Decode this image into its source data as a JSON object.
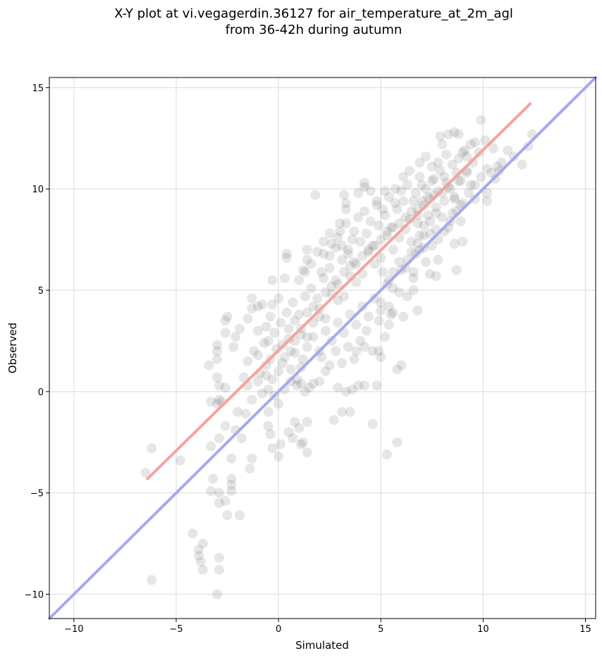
{
  "chart_data": {
    "type": "scatter",
    "title_line1": "X-Y plot at vi.vegagerdin.36127 for air_temperature_at_2m_agl",
    "title_line2": "from 36-42h during autumn",
    "xlabel": "Simulated",
    "ylabel": "Observed",
    "xlim": [
      -11.2,
      15.5
    ],
    "ylim": [
      -11.2,
      15.5
    ],
    "xticks": [
      -10,
      -5,
      0,
      5,
      10,
      15
    ],
    "yticks": [
      -10,
      -5,
      0,
      5,
      10,
      15
    ],
    "xtick_labels": [
      "−10",
      "−5",
      "0",
      "5",
      "10",
      "15"
    ],
    "ytick_labels": [
      "−10",
      "−5",
      "0",
      "5",
      "10",
      "15"
    ],
    "grid": true,
    "point_color": "#555555",
    "fit_line": {
      "color": "#f4a3a3",
      "x": [
        -6.4,
        12.3
      ],
      "y": [
        -4.3,
        14.2
      ]
    },
    "identity_line": {
      "color": "#a8a8f0",
      "x": [
        -11.2,
        15.5
      ],
      "y": [
        -11.2,
        15.5
      ]
    },
    "points": [
      [
        -6.2,
        -9.3
      ],
      [
        -3.0,
        -10.0
      ],
      [
        -2.9,
        -8.8
      ],
      [
        -2.9,
        -8.2
      ],
      [
        -3.9,
        -8.1
      ],
      [
        -3.8,
        -8.4
      ],
      [
        -3.7,
        -8.8
      ],
      [
        -4.2,
        -7.0
      ],
      [
        -3.7,
        -7.5
      ],
      [
        -3.9,
        -7.8
      ],
      [
        -6.5,
        -4.0
      ],
      [
        -6.2,
        -2.8
      ],
      [
        -4.8,
        -3.4
      ],
      [
        -3.2,
        -4.3
      ],
      [
        -3.3,
        -4.9
      ],
      [
        -2.9,
        -5.0
      ],
      [
        -2.9,
        -5.5
      ],
      [
        -2.6,
        -5.4
      ],
      [
        -2.5,
        -6.1
      ],
      [
        -1.9,
        -6.1
      ],
      [
        -2.3,
        -4.3
      ],
      [
        -2.3,
        -4.6
      ],
      [
        -2.3,
        -4.9
      ],
      [
        -1.4,
        -3.8
      ],
      [
        -1.3,
        -3.3
      ],
      [
        -2.3,
        -3.3
      ],
      [
        -3.3,
        -2.7
      ],
      [
        -2.9,
        -2.3
      ],
      [
        -2.1,
        -1.9
      ],
      [
        -2.6,
        -1.7
      ],
      [
        -3.0,
        -0.6
      ],
      [
        -2.9,
        -0.4
      ],
      [
        -2.6,
        0.2
      ],
      [
        -3.0,
        0.7
      ],
      [
        -3.3,
        -0.5
      ],
      [
        -2.9,
        0.3
      ],
      [
        -2.8,
        -0.5
      ],
      [
        -2.0,
        -1.0
      ],
      [
        -1.6,
        -1.1
      ],
      [
        -1.8,
        -2.3
      ],
      [
        -3.0,
        1.6
      ],
      [
        -3.0,
        2.0
      ],
      [
        -3.0,
        2.3
      ],
      [
        -3.4,
        1.3
      ],
      [
        -2.6,
        2.9
      ],
      [
        -2.6,
        3.5
      ],
      [
        -2.5,
        3.7
      ],
      [
        -2.2,
        2.2
      ],
      [
        -2.1,
        2.7
      ],
      [
        -1.9,
        3.1
      ],
      [
        -1.5,
        3.6
      ],
      [
        -1.3,
        4.6
      ],
      [
        -1.3,
        4.1
      ],
      [
        -1.0,
        3.0
      ],
      [
        -1.0,
        4.2
      ],
      [
        -0.8,
        4.3
      ],
      [
        -0.6,
        3.2
      ],
      [
        -0.4,
        3.7
      ],
      [
        -0.3,
        4.3
      ],
      [
        0.0,
        4.6
      ],
      [
        -1.7,
        0.7
      ],
      [
        -1.5,
        0.3
      ],
      [
        -1.3,
        -0.4
      ],
      [
        -1.0,
        0.5
      ],
      [
        -0.8,
        -0.1
      ],
      [
        -0.6,
        0.8
      ],
      [
        -0.5,
        -1.0
      ],
      [
        -0.4,
        -2.1
      ],
      [
        -0.3,
        -2.8
      ],
      [
        -0.5,
        -1.7
      ],
      [
        0.0,
        -3.2
      ],
      [
        0.1,
        -2.6
      ],
      [
        0.5,
        -2.0
      ],
      [
        0.7,
        -2.3
      ],
      [
        1.0,
        -1.8
      ],
      [
        1.1,
        -2.6
      ],
      [
        1.2,
        -2.5
      ],
      [
        0.8,
        -1.5
      ],
      [
        1.4,
        -1.5
      ],
      [
        1.4,
        -3.0
      ],
      [
        0.3,
        5.6
      ],
      [
        0.4,
        6.6
      ],
      [
        0.4,
        6.8
      ],
      [
        -0.3,
        5.5
      ],
      [
        1.2,
        6.0
      ],
      [
        1.4,
        6.5
      ],
      [
        1.4,
        7.0
      ],
      [
        1.8,
        9.7
      ],
      [
        2.1,
        5.9
      ],
      [
        2.2,
        6.8
      ],
      [
        2.5,
        6.7
      ],
      [
        2.6,
        7.3
      ],
      [
        2.9,
        7.6
      ],
      [
        3.0,
        8.3
      ],
      [
        3.3,
        9.0
      ],
      [
        3.2,
        9.7
      ],
      [
        3.3,
        9.3
      ],
      [
        3.9,
        9.8
      ],
      [
        4.2,
        10.3
      ],
      [
        4.2,
        10.1
      ],
      [
        4.5,
        9.9
      ],
      [
        4.8,
        9.4
      ],
      [
        5.2,
        9.9
      ],
      [
        5.7,
        10.0
      ],
      [
        6.1,
        10.6
      ],
      [
        6.4,
        10.9
      ],
      [
        6.9,
        11.3
      ],
      [
        7.2,
        11.6
      ],
      [
        7.5,
        11.1
      ],
      [
        7.9,
        12.6
      ],
      [
        8.3,
        12.7
      ],
      [
        8.6,
        12.8
      ],
      [
        8.8,
        12.7
      ],
      [
        9.1,
        11.9
      ],
      [
        9.2,
        11.6
      ],
      [
        9.6,
        12.3
      ],
      [
        9.8,
        11.8
      ],
      [
        9.9,
        13.4
      ],
      [
        10.1,
        12.4
      ],
      [
        10.5,
        12.0
      ],
      [
        10.6,
        10.5
      ],
      [
        10.8,
        10.9
      ],
      [
        10.2,
        9.4
      ],
      [
        8.9,
        9.2
      ],
      [
        8.5,
        8.8
      ],
      [
        8.9,
        8.4
      ],
      [
        8.6,
        7.3
      ],
      [
        9.0,
        7.4
      ],
      [
        8.7,
        6.0
      ],
      [
        7.8,
        6.5
      ],
      [
        7.7,
        5.7
      ],
      [
        7.4,
        5.8
      ],
      [
        7.1,
        7.1
      ],
      [
        6.9,
        7.7
      ],
      [
        6.7,
        6.8
      ],
      [
        6.6,
        5.6
      ],
      [
        6.8,
        4.0
      ],
      [
        6.6,
        5.0
      ],
      [
        6.3,
        4.7
      ],
      [
        6.1,
        3.7
      ],
      [
        5.9,
        4.9
      ],
      [
        5.6,
        3.9
      ],
      [
        5.4,
        3.3
      ],
      [
        5.4,
        4.2
      ],
      [
        5.6,
        5.1
      ],
      [
        5.4,
        5.5
      ],
      [
        5.1,
        5.9
      ],
      [
        5.0,
        4.0
      ],
      [
        4.9,
        2.0
      ],
      [
        5.0,
        1.7
      ],
      [
        4.8,
        0.3
      ],
      [
        4.6,
        -1.6
      ],
      [
        5.8,
        -2.5
      ],
      [
        5.3,
        -3.1
      ],
      [
        5.8,
        1.1
      ],
      [
        6.0,
        1.3
      ],
      [
        4.2,
        2.2
      ],
      [
        3.8,
        2.0
      ],
      [
        3.6,
        0.1
      ],
      [
        3.5,
        -1.0
      ],
      [
        3.1,
        -1.0
      ],
      [
        2.7,
        -1.4
      ],
      [
        2.9,
        0.2
      ],
      [
        3.3,
        0.0
      ],
      [
        3.9,
        0.3
      ],
      [
        4.2,
        0.3
      ],
      [
        2.5,
        1.3
      ],
      [
        2.3,
        1.0
      ],
      [
        2.1,
        1.7
      ],
      [
        2.0,
        0.5
      ],
      [
        1.7,
        0.4
      ],
      [
        1.5,
        0.2
      ],
      [
        1.3,
        0.0
      ],
      [
        1.1,
        0.4
      ],
      [
        0.9,
        0.6
      ],
      [
        0.6,
        0.5
      ],
      [
        0.3,
        0.1
      ],
      [
        0.0,
        -0.6
      ],
      [
        -0.2,
        -0.2
      ],
      [
        -0.5,
        0.1
      ],
      [
        12.2,
        12.1
      ],
      [
        12.4,
        12.7
      ],
      [
        11.9,
        11.2
      ],
      [
        11.5,
        11.6
      ],
      [
        11.2,
        11.9
      ],
      [
        10.9,
        11.3
      ],
      [
        10.7,
        11.1
      ],
      [
        10.4,
        10.8
      ],
      [
        10.2,
        9.8
      ],
      [
        9.6,
        9.5
      ],
      [
        9.4,
        10.2
      ],
      [
        9.5,
        11.3
      ],
      [
        9.2,
        10.8
      ],
      [
        8.8,
        10.4
      ],
      [
        8.6,
        9.6
      ],
      [
        8.1,
        9.4
      ],
      [
        7.6,
        9.7
      ],
      [
        7.3,
        8.7
      ],
      [
        7.0,
        9.4
      ],
      [
        6.8,
        9.0
      ],
      [
        0.6,
        2.0
      ],
      [
        0.8,
        2.5
      ],
      [
        1.1,
        3.1
      ],
      [
        1.4,
        2.7
      ],
      [
        1.7,
        3.4
      ],
      [
        2.0,
        4.1
      ],
      [
        2.3,
        3.6
      ],
      [
        2.6,
        4.8
      ],
      [
        2.9,
        5.3
      ],
      [
        3.2,
        4.7
      ],
      [
        3.5,
        5.7
      ],
      [
        3.8,
        6.3
      ],
      [
        4.1,
        5.8
      ],
      [
        4.4,
        6.9
      ],
      [
        4.7,
        7.2
      ],
      [
        5.0,
        6.6
      ],
      [
        5.3,
        7.7
      ],
      [
        5.6,
        8.1
      ],
      [
        5.9,
        7.6
      ],
      [
        6.2,
        8.6
      ],
      [
        6.5,
        8.9
      ],
      [
        6.8,
        8.3
      ],
      [
        7.1,
        9.2
      ],
      [
        7.4,
        9.5
      ],
      [
        7.7,
        8.8
      ],
      [
        8.0,
        9.8
      ],
      [
        8.3,
        10.1
      ],
      [
        8.6,
        9.5
      ],
      [
        8.9,
        10.4
      ],
      [
        9.2,
        10.9
      ],
      [
        0.1,
        3.4
      ],
      [
        0.4,
        3.9
      ],
      [
        0.7,
        4.4
      ],
      [
        1.0,
        3.8
      ],
      [
        1.3,
        4.7
      ],
      [
        1.6,
        5.1
      ],
      [
        1.9,
        4.6
      ],
      [
        2.2,
        5.6
      ],
      [
        2.5,
        6.1
      ],
      [
        2.8,
        5.5
      ],
      [
        3.1,
        6.5
      ],
      [
        3.4,
        7.0
      ],
      [
        3.7,
        6.4
      ],
      [
        4.0,
        7.4
      ],
      [
        4.3,
        7.8
      ],
      [
        4.6,
        7.2
      ],
      [
        4.9,
        8.2
      ],
      [
        5.2,
        8.7
      ],
      [
        5.5,
        8.1
      ],
      [
        5.8,
        9.0
      ],
      [
        6.1,
        9.4
      ],
      [
        6.4,
        8.5
      ],
      [
        6.7,
        9.8
      ],
      [
        7.0,
        10.2
      ],
      [
        7.3,
        9.6
      ],
      [
        7.6,
        10.5
      ],
      [
        7.9,
        10.9
      ],
      [
        8.2,
        10.3
      ],
      [
        8.5,
        11.2
      ],
      [
        8.8,
        11.5
      ],
      [
        -0.5,
        2.5
      ],
      [
        -0.2,
        2.9
      ],
      [
        0.2,
        2.3
      ],
      [
        0.5,
        3.1
      ],
      [
        0.8,
        3.5
      ],
      [
        1.1,
        2.8
      ],
      [
        1.4,
        3.9
      ],
      [
        1.7,
        4.2
      ],
      [
        2.0,
        3.7
      ],
      [
        2.3,
        4.9
      ],
      [
        2.6,
        5.2
      ],
      [
        2.9,
        4.5
      ],
      [
        3.2,
        5.9
      ],
      [
        3.5,
        6.2
      ],
      [
        3.8,
        5.4
      ],
      [
        4.1,
        6.7
      ],
      [
        4.4,
        7.0
      ],
      [
        4.7,
        6.3
      ],
      [
        5.0,
        7.5
      ],
      [
        5.3,
        7.9
      ],
      [
        5.6,
        7.0
      ],
      [
        5.9,
        8.3
      ],
      [
        6.2,
        8.0
      ],
      [
        6.5,
        7.4
      ],
      [
        6.8,
        8.7
      ],
      [
        7.1,
        8.2
      ],
      [
        7.4,
        7.8
      ],
      [
        7.7,
        9.1
      ],
      [
        8.0,
        8.6
      ],
      [
        8.3,
        8.1
      ],
      [
        -1.0,
        1.8
      ],
      [
        -0.7,
        2.4
      ],
      [
        -0.4,
        1.6
      ],
      [
        -0.1,
        2.1
      ],
      [
        0.2,
        1.4
      ],
      [
        0.5,
        2.6
      ],
      [
        0.8,
        1.9
      ],
      [
        1.1,
        1.2
      ],
      [
        1.4,
        2.2
      ],
      [
        1.7,
        2.7
      ],
      [
        2.0,
        2.0
      ],
      [
        2.3,
        3.0
      ],
      [
        2.6,
        2.5
      ],
      [
        2.9,
        3.4
      ],
      [
        3.2,
        2.9
      ],
      [
        3.5,
        3.8
      ],
      [
        3.8,
        3.3
      ],
      [
        4.1,
        4.2
      ],
      [
        4.4,
        3.7
      ],
      [
        4.7,
        4.6
      ],
      [
        5.0,
        4.4
      ],
      [
        5.3,
        5.3
      ],
      [
        5.6,
        5.9
      ],
      [
        5.9,
        6.4
      ],
      [
        6.2,
        6.1
      ],
      [
        6.5,
        6.9
      ],
      [
        6.8,
        7.3
      ],
      [
        7.1,
        7.7
      ],
      [
        7.4,
        8.4
      ],
      [
        7.7,
        8.0
      ],
      [
        3.0,
        7.9
      ],
      [
        3.3,
        8.3
      ],
      [
        3.6,
        7.5
      ],
      [
        3.9,
        8.6
      ],
      [
        4.2,
        8.9
      ],
      [
        4.5,
        8.4
      ],
      [
        4.8,
        9.2
      ],
      [
        5.1,
        9.0
      ],
      [
        5.4,
        9.6
      ],
      [
        5.7,
        9.3
      ],
      [
        6.0,
        9.9
      ],
      [
        6.3,
        10.2
      ],
      [
        6.6,
        9.4
      ],
      [
        6.9,
        10.6
      ],
      [
        7.2,
        10.0
      ],
      [
        7.5,
        10.4
      ],
      [
        7.8,
        9.9
      ],
      [
        8.1,
        10.6
      ],
      [
        8.4,
        10.0
      ],
      [
        8.7,
        10.8
      ],
      [
        1.0,
        5.5
      ],
      [
        1.3,
        5.9
      ],
      [
        1.6,
        6.3
      ],
      [
        1.9,
        6.9
      ],
      [
        2.2,
        7.4
      ],
      [
        2.5,
        7.8
      ],
      [
        2.8,
        7.1
      ],
      [
        3.1,
        7.2
      ],
      [
        3.4,
        6.8
      ],
      [
        3.7,
        7.9
      ],
      [
        -1.5,
        1.5
      ],
      [
        -1.2,
        2.0
      ],
      [
        -0.9,
        0.9
      ],
      [
        -0.6,
        1.3
      ],
      [
        -0.3,
        0.6
      ],
      [
        0.0,
        1.0
      ],
      [
        0.3,
        1.7
      ],
      [
        0.6,
        1.1
      ],
      [
        0.9,
        0.3
      ],
      [
        1.2,
        1.6
      ],
      [
        4.0,
        2.5
      ],
      [
        4.3,
        3.0
      ],
      [
        4.6,
        2.0
      ],
      [
        4.9,
        3.5
      ],
      [
        5.2,
        2.7
      ],
      [
        5.5,
        3.8
      ],
      [
        3.7,
        1.6
      ],
      [
        3.4,
        2.2
      ],
      [
        3.1,
        1.4
      ],
      [
        2.8,
        2.0
      ],
      [
        6.0,
        6.0
      ],
      [
        6.3,
        6.5
      ],
      [
        6.6,
        5.9
      ],
      [
        6.9,
        7.0
      ],
      [
        7.2,
        6.4
      ],
      [
        7.5,
        7.2
      ],
      [
        7.8,
        7.5
      ],
      [
        8.1,
        7.9
      ],
      [
        8.4,
        8.4
      ],
      [
        8.7,
        8.9
      ],
      [
        9.0,
        9.3
      ],
      [
        9.3,
        9.8
      ],
      [
        9.6,
        10.2
      ],
      [
        9.9,
        10.6
      ],
      [
        10.2,
        11.0
      ],
      [
        9.0,
        11.8
      ],
      [
        9.4,
        12.2
      ],
      [
        8.2,
        11.7
      ],
      [
        7.8,
        11.3
      ],
      [
        8.0,
        12.2
      ]
    ]
  }
}
